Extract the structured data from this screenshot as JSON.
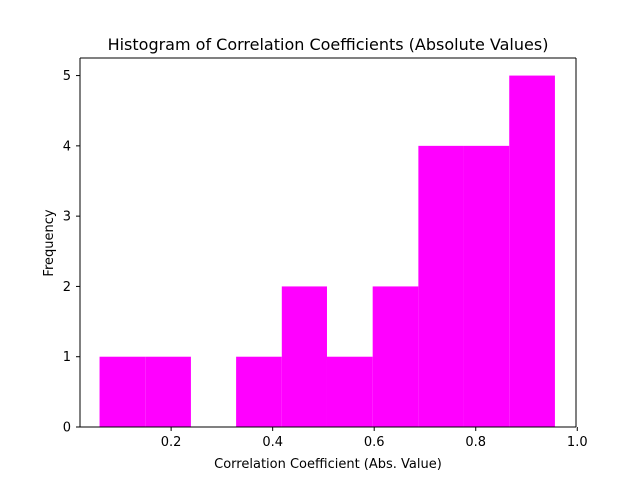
{
  "chart_data": {
    "type": "bar",
    "title": "Histogram of Correlation Coefficients (Absolute Values)",
    "xlabel": "Correlation Coefficient (Abs. Value)",
    "ylabel": "Frequency",
    "xlim": [
      0.0205,
      0.9975
    ],
    "ylim": [
      0,
      5.25
    ],
    "xticks": [
      0.2,
      0.4,
      0.6,
      0.8,
      1.0
    ],
    "xtick_labels": [
      "0.2",
      "0.4",
      "0.6",
      "0.8",
      "1.0"
    ],
    "yticks": [
      0,
      1,
      2,
      3,
      4,
      5
    ],
    "ytick_labels": [
      "0",
      "1",
      "2",
      "3",
      "4",
      "5"
    ],
    "bin_edges": [
      0.059,
      0.149,
      0.239,
      0.328,
      0.418,
      0.507,
      0.597,
      0.687,
      0.776,
      0.866,
      0.956
    ],
    "counts": [
      1,
      1,
      0,
      1,
      2,
      1,
      2,
      4,
      4,
      5
    ],
    "bar_color": "#ff00ff",
    "grid": false,
    "legend": "none"
  }
}
